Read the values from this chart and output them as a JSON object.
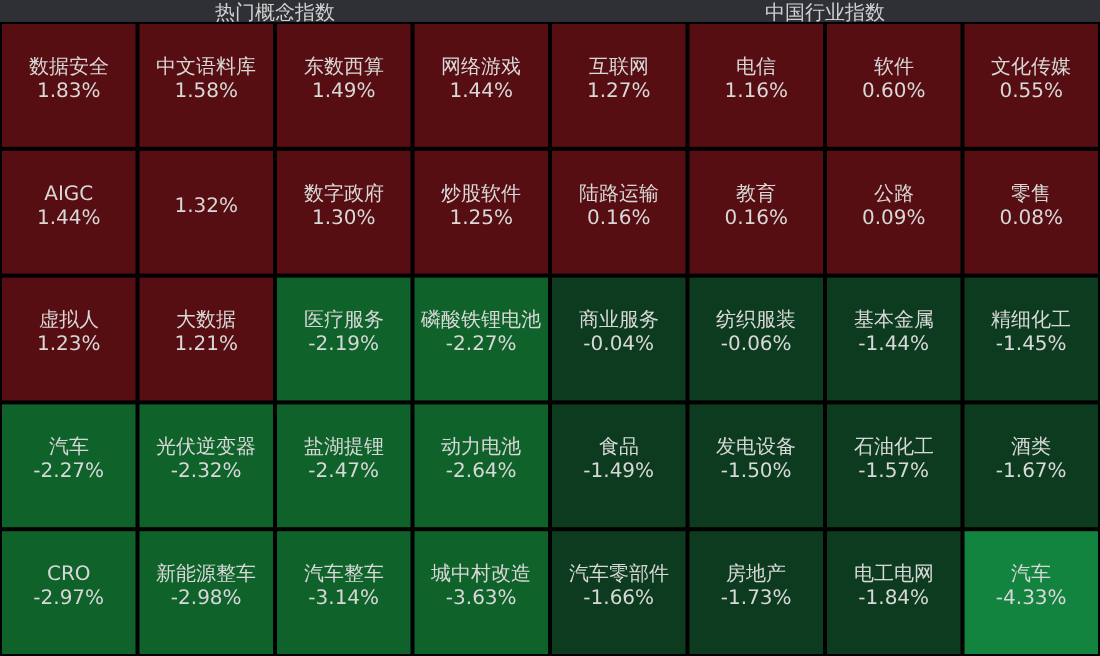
{
  "chart_data": [
    {
      "type": "other",
      "title": "热门概念指数",
      "categories": [
        "数据安全",
        "中文语料库",
        "东数西算",
        "网络游戏",
        "AIGC",
        null,
        "数字政府",
        "炒股软件",
        "虚拟人",
        "大数据",
        "医疗服务",
        "磷酸铁锂电池",
        "汽车",
        "光伏逆变器",
        "盐湖提锂",
        "动力电池",
        "CRO",
        "新能源整车",
        "汽车整车",
        "城中村改造"
      ],
      "values": [
        1.83,
        1.58,
        1.49,
        1.44,
        1.44,
        1.32,
        1.3,
        1.25,
        1.23,
        1.21,
        -2.19,
        -2.27,
        -2.27,
        -2.32,
        -2.47,
        -2.64,
        -2.97,
        -2.98,
        -3.14,
        -3.63
      ],
      "value_labels": [
        "1.83%",
        "1.58%",
        "1.49%",
        "1.44%",
        "1.44%",
        "1.32%",
        "1.30%",
        "1.25%",
        "1.23%",
        "1.21%",
        "-2.19%",
        "-2.27%",
        "-2.27%",
        "-2.32%",
        "-2.47%",
        "-2.64%",
        "-2.97%",
        "-2.98%",
        "-3.14%",
        "-3.63%"
      ]
    },
    {
      "type": "other",
      "title": "中国行业指数",
      "categories": [
        "互联网",
        "电信",
        "软件",
        "文化传媒",
        "陆路运输",
        "教育",
        "公路",
        "零售",
        "商业服务",
        "纺织服装",
        "基本金属",
        "精细化工",
        "食品",
        "发电设备",
        "石油化工",
        "酒类",
        "汽车零部件",
        "房地产",
        "电工电网",
        "汽车"
      ],
      "values": [
        1.27,
        1.16,
        0.6,
        0.55,
        0.16,
        0.16,
        0.09,
        0.08,
        -0.04,
        -0.06,
        -1.44,
        -1.45,
        -1.49,
        -1.5,
        -1.57,
        -1.67,
        -1.66,
        -1.73,
        -1.84,
        -4.33
      ],
      "value_labels": [
        "1.27%",
        "1.16%",
        "0.60%",
        "0.55%",
        "0.16%",
        "0.16%",
        "0.09%",
        "0.08%",
        "-0.04%",
        "-0.06%",
        "-1.44%",
        "-1.45%",
        "-1.49%",
        "-1.50%",
        "-1.57%",
        "-1.67%",
        "-1.66%",
        "-1.73%",
        "-1.84%",
        "-4.33%"
      ]
    }
  ]
}
